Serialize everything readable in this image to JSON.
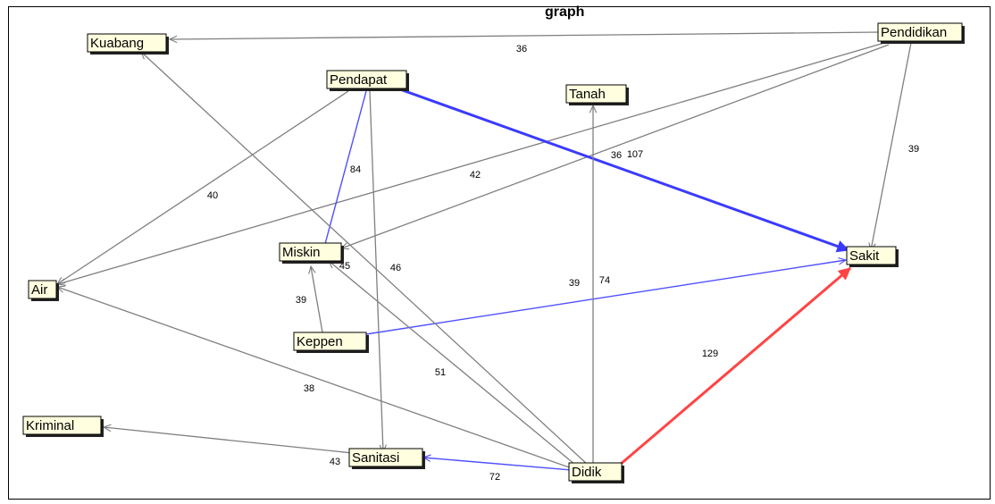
{
  "title": "graph",
  "colors": {
    "gray": "#7f7f7f",
    "blue": "#4f4fff",
    "blue_strong": "#3a3aff",
    "red": "#ff4444"
  },
  "nodes": [
    {
      "id": "kuabang",
      "label": "Kuabang"
    },
    {
      "id": "pendidikan",
      "label": "Pendidikan"
    },
    {
      "id": "pendapat",
      "label": "Pendapat"
    },
    {
      "id": "tanah",
      "label": "Tanah"
    },
    {
      "id": "miskin",
      "label": "Miskin"
    },
    {
      "id": "sakit",
      "label": "Sakit"
    },
    {
      "id": "air",
      "label": "Air"
    },
    {
      "id": "keppen",
      "label": "Keppen"
    },
    {
      "id": "kriminal",
      "label": "Kriminal"
    },
    {
      "id": "sanitasi",
      "label": "Sanitasi"
    },
    {
      "id": "didik",
      "label": "Didik"
    }
  ],
  "edges": [
    {
      "from": "pendidikan",
      "to": "kuabang",
      "weight": "36",
      "color": "gray"
    },
    {
      "from": "pendidikan",
      "to": "air",
      "weight": "36",
      "color": "gray"
    },
    {
      "from": "pendidikan",
      "to": "miskin",
      "weight": "42",
      "color": "gray"
    },
    {
      "from": "pendidikan",
      "to": "sakit",
      "weight": "39",
      "color": "gray"
    },
    {
      "from": "pendapat",
      "to": "air",
      "weight": "40",
      "color": "gray"
    },
    {
      "from": "pendapat",
      "to": "miskin",
      "weight": "84",
      "color": "blue"
    },
    {
      "from": "pendapat",
      "to": "sanitasi",
      "weight": "46",
      "color": "gray"
    },
    {
      "from": "pendapat",
      "to": "sakit",
      "weight": "107",
      "color": "blue_strong"
    },
    {
      "from": "keppen",
      "to": "miskin",
      "weight": "39",
      "color": "gray"
    },
    {
      "from": "keppen",
      "to": "sakit",
      "weight": "39",
      "color": "blue"
    },
    {
      "from": "didik",
      "to": "kuabang",
      "weight": "45",
      "color": "gray"
    },
    {
      "from": "didik",
      "to": "miskin",
      "weight": "51",
      "color": "gray"
    },
    {
      "from": "didik",
      "to": "air",
      "weight": "38",
      "color": "gray"
    },
    {
      "from": "didik",
      "to": "tanah",
      "weight": "74",
      "color": "gray"
    },
    {
      "from": "didik",
      "to": "sakit",
      "weight": "129",
      "color": "red"
    },
    {
      "from": "didik",
      "to": "sanitasi",
      "weight": "72",
      "color": "blue"
    },
    {
      "from": "sanitasi",
      "to": "kriminal",
      "weight": "43",
      "color": "gray"
    }
  ]
}
